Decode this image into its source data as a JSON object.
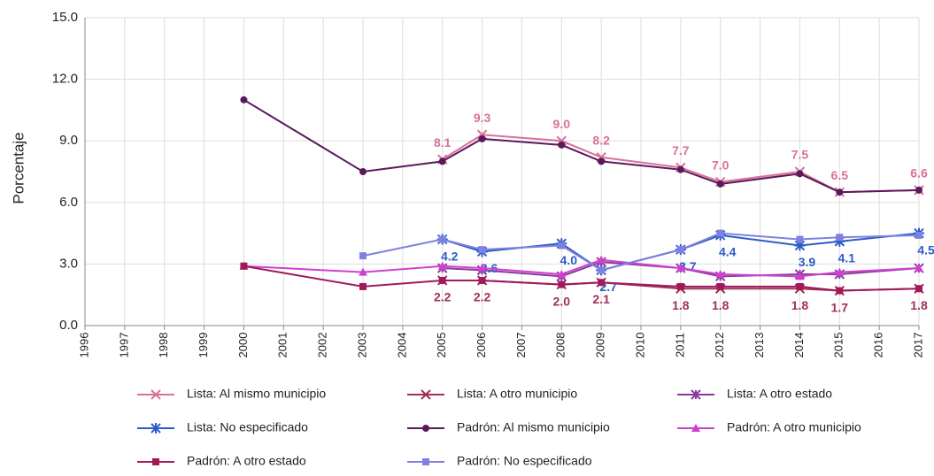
{
  "chart_data": {
    "type": "line",
    "y_label": "Porcentaje",
    "x": [
      2000,
      2003,
      2005,
      2006,
      2008,
      2009,
      2011,
      2012,
      2014,
      2015,
      2017
    ],
    "xlim": [
      1996,
      2017
    ],
    "xticks": [
      1996,
      1997,
      1998,
      1999,
      2000,
      2001,
      2002,
      2003,
      2004,
      2005,
      2006,
      2007,
      2008,
      2009,
      2010,
      2011,
      2012,
      2013,
      2014,
      2015,
      2016,
      2017
    ],
    "ylim": [
      0,
      15
    ],
    "yticks": [
      {
        "value": 0,
        "label": "0.0"
      },
      {
        "value": 3,
        "label": "3.0"
      },
      {
        "value": 6,
        "label": "6.0"
      },
      {
        "value": 9,
        "label": "9.0"
      },
      {
        "value": 12,
        "label": "12.0"
      },
      {
        "value": 15,
        "label": "15.0"
      }
    ],
    "grid": true,
    "series": [
      {
        "name": "Lista: Al mismo municipio",
        "color": "#d9709a",
        "marker": "x",
        "values": [
          null,
          null,
          8.1,
          9.3,
          9.0,
          8.2,
          7.7,
          7.0,
          7.5,
          6.5,
          6.6
        ],
        "value_labels": [
          null,
          null,
          "8.1",
          "9.3",
          "9.0",
          "8.2",
          "7.7",
          "7.0",
          "7.5",
          "6.5",
          "6.6"
        ]
      },
      {
        "name": "Lista: A otro municipio",
        "color": "#a0305a",
        "marker": "x",
        "values": [
          null,
          null,
          2.2,
          2.2,
          2.0,
          2.1,
          1.8,
          1.8,
          1.8,
          1.7,
          1.8
        ],
        "value_labels": [
          null,
          null,
          "2.2",
          "2.2",
          "2.0",
          "2.1",
          "1.8",
          "1.8",
          "1.8",
          "1.7",
          "1.8"
        ]
      },
      {
        "name": "Lista: A otro estado",
        "color": "#8a3a9a",
        "marker": "asterisk",
        "values": [
          null,
          null,
          2.8,
          2.7,
          2.4,
          3.1,
          2.8,
          2.4,
          2.5,
          2.5,
          2.8
        ]
      },
      {
        "name": "Lista: No especificado",
        "color": "#2a5cc8",
        "marker": "star",
        "values": [
          null,
          null,
          4.2,
          3.6,
          4.0,
          2.7,
          3.7,
          4.4,
          3.9,
          4.1,
          4.5
        ],
        "value_labels": [
          null,
          null,
          "4.2",
          "3.6",
          "4.0",
          "2.7",
          "3.7",
          "4.4",
          "3.9",
          "4.1",
          "4.5"
        ]
      },
      {
        "name": "Padrón: Al mismo municipio",
        "color": "#5a1a5a",
        "marker": "circle",
        "values": [
          11.0,
          7.5,
          8.0,
          9.1,
          8.8,
          8.0,
          7.6,
          6.9,
          7.4,
          6.5,
          6.6
        ]
      },
      {
        "name": "Padrón: A otro municipio",
        "color": "#d040d0",
        "marker": "triangle",
        "values": [
          2.9,
          2.6,
          2.9,
          2.8,
          2.5,
          3.2,
          2.8,
          2.5,
          2.4,
          2.6,
          2.8
        ]
      },
      {
        "name": "Padrón: A otro estado",
        "color": "#a01a5a",
        "marker": "square",
        "values": [
          2.9,
          1.9,
          2.2,
          2.2,
          2.0,
          2.1,
          1.9,
          1.9,
          1.9,
          1.7,
          1.8
        ]
      },
      {
        "name": "Padrón: No especificado",
        "color": "#8080e0",
        "marker": "square",
        "values": [
          null,
          3.4,
          4.2,
          3.7,
          3.9,
          2.7,
          3.7,
          4.5,
          4.2,
          4.3,
          4.4
        ]
      }
    ]
  }
}
